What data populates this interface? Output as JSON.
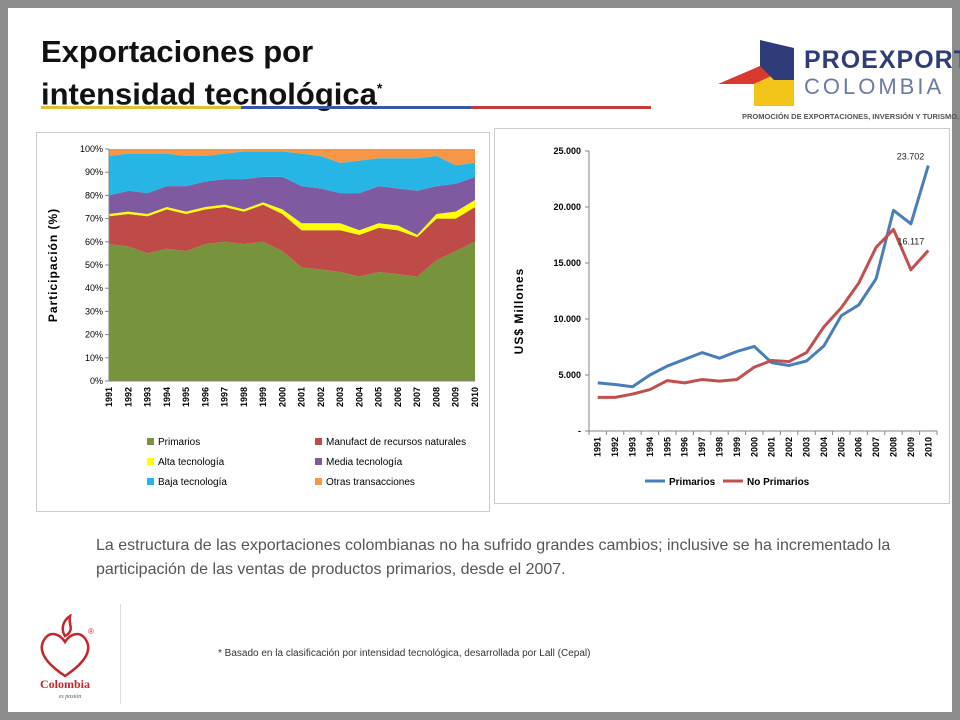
{
  "slide": {
    "title_line1": "Exportaciones por",
    "title_line2": "intensidad tecnológica",
    "title_asterisk": "*",
    "body_text": "La estructura de las exportaciones colombianas no ha sufrido grandes cambios; inclusive se ha incrementado la participación de las ventas de productos primarios, desde el 2007.",
    "footnote": "* Basado en la clasificación  por intensidad  tecnológica,  desarrollada por Lall (Cepal)",
    "rule_colors": [
      "#e3c232",
      "#3857a7",
      "#c43c3c"
    ]
  },
  "logo": {
    "name": "PROEXPORT",
    "country": "COLOMBIA",
    "tagline": "PROMOCIÓN DE EXPORTACIONES, INVERSIÓN Y TURISMO.",
    "colors": {
      "red": "#d9392f",
      "blue": "#2e3d7a",
      "yellow": "#f2c417"
    }
  },
  "colombia_logo": {
    "text": "Colombia",
    "subtitle": "es pasión",
    "registered": "®",
    "color": "#c0282d"
  },
  "chart_data": [
    {
      "type": "area",
      "stacked": true,
      "xlabel": "",
      "ylabel": "Participación (%)",
      "ylim": [
        0,
        100
      ],
      "yticks": [
        "0%",
        "10%",
        "20%",
        "30%",
        "40%",
        "50%",
        "60%",
        "70%",
        "80%",
        "90%",
        "100%"
      ],
      "grid": false,
      "legend_position": "bottom",
      "x": [
        "1991",
        "1992",
        "1993",
        "1994",
        "1995",
        "1996",
        "1997",
        "1998",
        "1999",
        "2000",
        "2001",
        "2002",
        "2003",
        "2004",
        "2005",
        "2006",
        "2007",
        "2008",
        "2009",
        "2010"
      ],
      "series": [
        {
          "name": "Primarios",
          "color": "#77933c",
          "values": [
            59,
            58,
            55,
            57,
            56,
            59,
            60,
            59,
            60,
            56,
            49,
            48,
            47,
            45,
            47,
            46,
            45,
            52,
            56,
            60
          ]
        },
        {
          "name": "Manufact de recursos naturales",
          "color": "#be4b48",
          "values": [
            12,
            14,
            16,
            17,
            16,
            15,
            15,
            14,
            16,
            16,
            16,
            17,
            18,
            18,
            19,
            19,
            17,
            18,
            14,
            15
          ]
        },
        {
          "name": "Alta tecnología",
          "color": "#ffff00",
          "values": [
            1,
            1,
            1,
            1,
            1,
            1,
            1,
            1,
            1,
            2,
            3,
            3,
            3,
            2,
            2,
            2,
            1,
            2,
            3,
            3
          ]
        },
        {
          "name": "Media tecnología",
          "color": "#7f5aa1",
          "values": [
            8,
            9,
            9,
            9,
            11,
            11,
            11,
            13,
            11,
            14,
            16,
            15,
            13,
            16,
            16,
            16,
            19,
            12,
            12,
            10
          ]
        },
        {
          "name": "Baja tecnología",
          "color": "#26b5e5",
          "values": [
            17,
            16,
            17,
            14,
            13,
            11,
            11,
            12,
            11,
            11,
            14,
            14,
            13,
            14,
            12,
            13,
            14,
            13,
            8,
            6
          ]
        },
        {
          "name": "Otras transacciones",
          "color": "#f79646",
          "values": [
            3,
            2,
            2,
            2,
            3,
            3,
            2,
            1,
            1,
            1,
            2,
            3,
            6,
            5,
            4,
            4,
            4,
            3,
            7,
            6
          ]
        }
      ]
    },
    {
      "type": "line",
      "xlabel": "",
      "ylabel": "US$ Millones",
      "ylim": [
        0,
        25000
      ],
      "yticks": [
        "-",
        "5.000",
        "10.000",
        "15.000",
        "20.000",
        "25.000"
      ],
      "grid": false,
      "legend_position": "bottom",
      "x": [
        "1991",
        "1992",
        "1993",
        "1994",
        "1995",
        "1996",
        "1997",
        "1998",
        "1999",
        "2000",
        "2001",
        "2002",
        "2003",
        "2004",
        "2005",
        "2006",
        "2007",
        "2008",
        "2009",
        "2010"
      ],
      "series": [
        {
          "name": "Primarios",
          "color": "#4a7ebb",
          "values": [
            4300,
            4150,
            3950,
            5000,
            5800,
            6400,
            7000,
            6500,
            7100,
            7550,
            6100,
            5850,
            6250,
            7600,
            10300,
            11250,
            13600,
            19700,
            18500,
            23702
          ],
          "end_label": "23.702"
        },
        {
          "name": "No Primarios",
          "color": "#c0504d",
          "values": [
            3000,
            3000,
            3300,
            3700,
            4500,
            4300,
            4600,
            4450,
            4600,
            5700,
            6300,
            6200,
            7000,
            9300,
            11000,
            13200,
            16400,
            18000,
            14400,
            16117
          ],
          "end_label": "16.117"
        }
      ]
    }
  ]
}
